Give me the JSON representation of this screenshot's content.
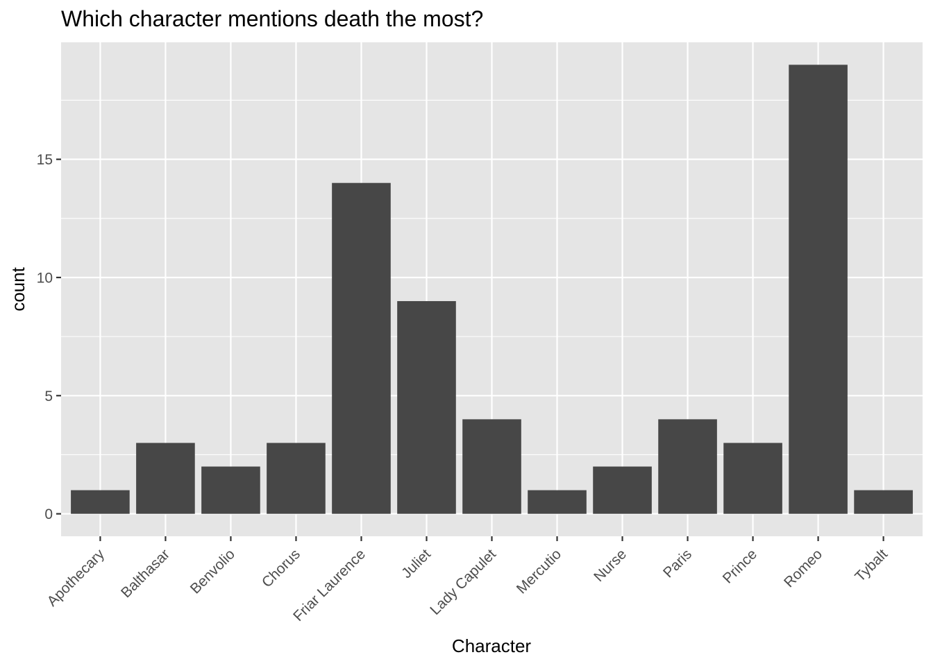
{
  "chart_data": {
    "type": "bar",
    "title": "Which character mentions death the most?",
    "xlabel": "Character",
    "ylabel": "count",
    "categories": [
      "Apothecary",
      "Balthasar",
      "Benvolio",
      "Chorus",
      "Friar Laurence",
      "Juliet",
      "Lady Capulet",
      "Mercutio",
      "Nurse",
      "Paris",
      "Prince",
      "Romeo",
      "Tybalt"
    ],
    "values": [
      1,
      3,
      2,
      3,
      14,
      9,
      4,
      1,
      2,
      4,
      3,
      19,
      1
    ],
    "ylim": [
      -0.95,
      19.95
    ],
    "yticks": [
      0,
      5,
      10,
      15
    ],
    "ytick_labels": [
      "0",
      "5",
      "10",
      "15"
    ],
    "grid": true,
    "colors": {
      "panel": "#e5e5e5",
      "grid_major": "#ffffff",
      "bar": "#474747",
      "tick": "#333333",
      "tick_text": "#4d4d4d"
    }
  }
}
